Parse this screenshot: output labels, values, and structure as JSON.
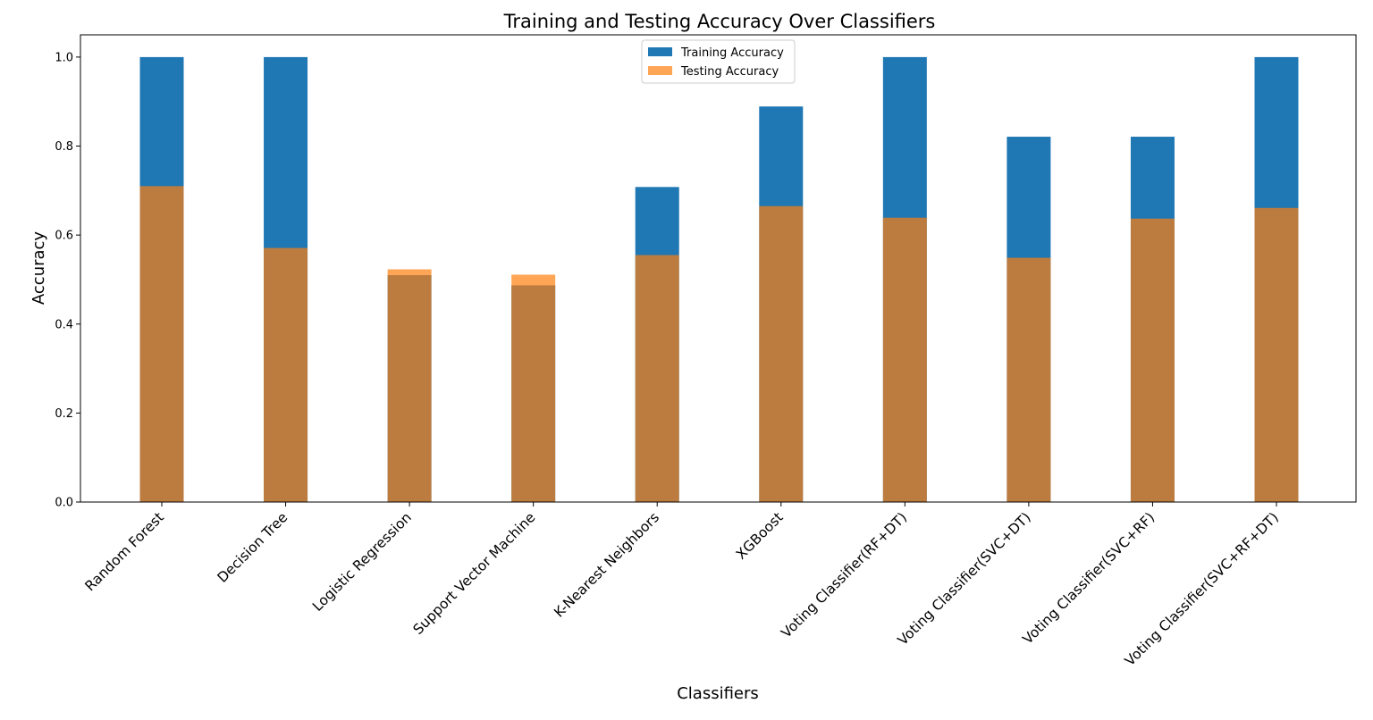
{
  "chart_data": {
    "type": "bar",
    "title": "Training and Testing Accuracy Over Classifiers",
    "xlabel": "Classifiers",
    "ylabel": "Accuracy",
    "ylim": [
      0,
      1.05
    ],
    "yticks": [
      0.0,
      0.2,
      0.4,
      0.6,
      0.8,
      1.0
    ],
    "ytick_labels": [
      "0.0",
      "0.2",
      "0.4",
      "0.6",
      "0.8",
      "1.0"
    ],
    "grid": false,
    "legend_position": "top-center",
    "overlay": true,
    "categories": [
      "Random Forest",
      "Decision Tree",
      "Logistic Regression",
      "Support Vector Machine",
      "K-Nearest Neighbors",
      "XGBoost",
      "Voting Classifier(RF+DT)",
      "Voting Classifier(SVC+DT)",
      "Voting Classifier(SVC+RF)",
      "Voting Classifier(SVC+RF+DT)"
    ],
    "series": [
      {
        "name": "Training Accuracy",
        "color": "#1f77b4",
        "opacity": 1.0,
        "values": [
          1.0,
          1.0,
          0.51,
          0.487,
          0.708,
          0.889,
          1.0,
          0.821,
          0.821,
          1.0
        ]
      },
      {
        "name": "Testing Accuracy",
        "color": "#ff7f0e",
        "opacity": 0.7,
        "values": [
          0.71,
          0.571,
          0.523,
          0.511,
          0.555,
          0.665,
          0.639,
          0.549,
          0.637,
          0.661
        ]
      }
    ]
  }
}
